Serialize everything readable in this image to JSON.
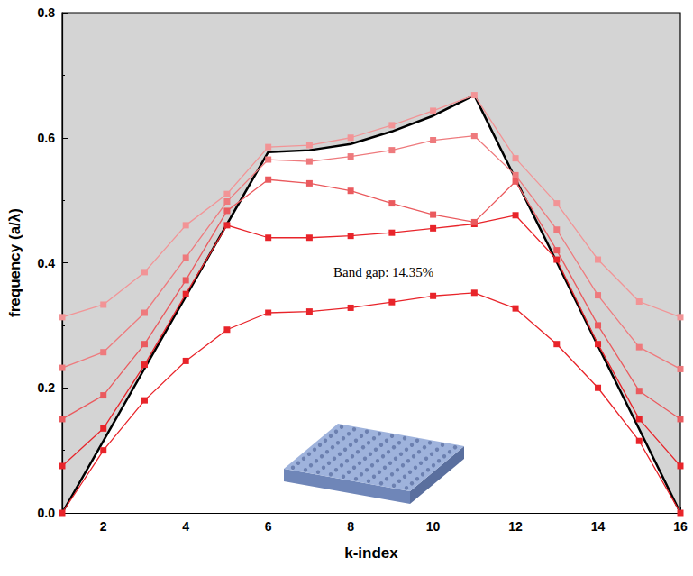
{
  "chart_data": {
    "type": "line",
    "xlabel": "k-index",
    "ylabel": "frequency (a/λ)",
    "x": [
      1,
      2,
      3,
      4,
      5,
      6,
      7,
      8,
      9,
      10,
      11,
      12,
      13,
      14,
      15,
      16
    ],
    "xlim": [
      1,
      16
    ],
    "xticks": [
      2,
      4,
      6,
      8,
      10,
      12,
      14,
      16
    ],
    "ylim": [
      0,
      0.8
    ],
    "yticks": [
      {
        "value": 0,
        "label": "0.0"
      },
      0.2,
      0.4,
      0.6,
      0.8
    ],
    "grid": false,
    "marker": "square",
    "series": [
      {
        "color": "#000000",
        "marker": "none",
        "values": [
          0,
          0.115,
          0.231,
          0.346,
          0.462,
          0.577,
          0.58,
          0.59,
          0.61,
          0.635,
          0.668,
          0.534,
          0.401,
          0.267,
          0.134,
          0
        ]
      },
      {
        "color": "#e8242a",
        "values": [
          0,
          0.1,
          0.18,
          0.243,
          0.293,
          0.32,
          0.322,
          0.328,
          0.337,
          0.347,
          0.352,
          0.327,
          0.27,
          0.2,
          0.115,
          0
        ]
      },
      {
        "color": "#e8242a",
        "values": [
          0.075,
          0.135,
          0.237,
          0.35,
          0.46,
          0.44,
          0.44,
          0.443,
          0.448,
          0.455,
          0.462,
          0.476,
          0.405,
          0.27,
          0.15,
          0.075
        ]
      },
      {
        "color": "#ea5a5e",
        "values": [
          0.15,
          0.188,
          0.27,
          0.372,
          0.483,
          0.533,
          0.527,
          0.515,
          0.495,
          0.477,
          0.465,
          0.53,
          0.42,
          0.3,
          0.195,
          0.15
        ]
      },
      {
        "color": "#ee7a7d",
        "values": [
          0.232,
          0.257,
          0.32,
          0.408,
          0.498,
          0.565,
          0.562,
          0.57,
          0.58,
          0.596,
          0.603,
          0.54,
          0.453,
          0.348,
          0.265,
          0.23
        ]
      },
      {
        "color": "#f29496",
        "values": [
          0.313,
          0.333,
          0.385,
          0.46,
          0.51,
          0.585,
          0.588,
          0.6,
          0.62,
          0.643,
          0.668,
          0.567,
          0.495,
          0.405,
          0.338,
          0.313
        ]
      }
    ],
    "annotations": [
      {
        "text": "Band gap: 14.35%",
        "x": [
          4.7,
          12.9
        ],
        "y": [
          0.355,
          0.415
        ]
      }
    ]
  }
}
